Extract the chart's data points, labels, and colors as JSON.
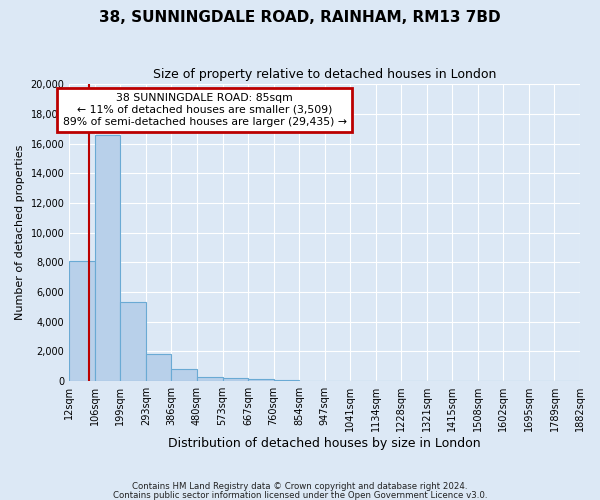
{
  "title": "38, SUNNINGDALE ROAD, RAINHAM, RM13 7BD",
  "subtitle": "Size of property relative to detached houses in London",
  "xlabel": "Distribution of detached houses by size in London",
  "ylabel": "Number of detached properties",
  "footnote1": "Contains HM Land Registry data © Crown copyright and database right 2024.",
  "footnote2": "Contains public sector information licensed under the Open Government Licence v3.0.",
  "bin_labels": [
    "12sqm",
    "106sqm",
    "199sqm",
    "293sqm",
    "386sqm",
    "480sqm",
    "573sqm",
    "667sqm",
    "760sqm",
    "854sqm",
    "947sqm",
    "1041sqm",
    "1134sqm",
    "1228sqm",
    "1321sqm",
    "1415sqm",
    "1508sqm",
    "1602sqm",
    "1695sqm",
    "1789sqm",
    "1882sqm"
  ],
  "bar_values": [
    8100,
    16600,
    5300,
    1800,
    800,
    280,
    200,
    120,
    100,
    0,
    0,
    0,
    0,
    0,
    0,
    0,
    0,
    0,
    0,
    0
  ],
  "bar_color": "#b8d0ea",
  "bar_edge_color": "#6aaad4",
  "property_size": 85,
  "property_label": "38 SUNNINGDALE ROAD: 85sqm",
  "pct_smaller": 11,
  "n_smaller": 3509,
  "pct_larger": 89,
  "n_larger": 29435,
  "vline_color": "#bb0000",
  "annotation_box_edge": "#bb0000",
  "ylim": [
    0,
    20000
  ],
  "yticks": [
    0,
    2000,
    4000,
    6000,
    8000,
    10000,
    12000,
    14000,
    16000,
    18000,
    20000
  ],
  "background_color": "#dce8f5",
  "plot_background": "#dce8f5",
  "grid_color": "#ffffff"
}
